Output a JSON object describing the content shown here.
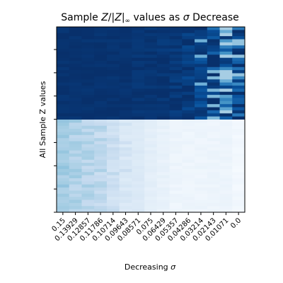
{
  "chart_data": {
    "type": "heatmap",
    "title": "Sample Z/|Z|∞ values as σ Decrease",
    "title_parts": {
      "prefix": "Sample ",
      "math_z": "Z",
      "bar_open": "/|",
      "math_z2": "Z",
      "bar_close": "|",
      "sub_inf": "∞",
      "mid": " values as ",
      "sigma": "σ",
      "suffix": " Decrease"
    },
    "xlabel": "Decreasing σ",
    "xlabel_parts": {
      "text": "Decreasing ",
      "sigma": "σ"
    },
    "ylabel": "All Sample Z values",
    "x_categories": [
      "0.15",
      "0.13929",
      "0.12857",
      "0.11786",
      "0.10714",
      "0.09643",
      "0.08571",
      "0.075",
      "0.06429",
      "0.05357",
      "0.04286",
      "0.03214",
      "0.02143",
      "0.01071",
      "0.0"
    ],
    "y_tick_count": 8,
    "y_tick_labels_shown": false,
    "colormap": "Blues",
    "colors": {
      "dark": "#08306b",
      "mid": "#4292c6",
      "light": "#deebf7",
      "white": "#f7fbff"
    },
    "value_range": [
      -1,
      1
    ],
    "row_count": 60,
    "grid": false,
    "legend": "none",
    "column_profiles": {
      "top_half_mean": [
        0.98,
        0.98,
        0.98,
        0.98,
        0.98,
        0.98,
        0.97,
        0.97,
        0.96,
        0.95,
        0.92,
        0.88,
        0.8,
        0.6,
        0.7
      ],
      "bottom_half_mean": [
        -0.3,
        -0.35,
        -0.4,
        -0.45,
        -0.55,
        -0.65,
        -0.72,
        -0.8,
        -0.85,
        -0.9,
        -0.9,
        -0.9,
        -0.9,
        -0.9,
        -0.95
      ]
    }
  }
}
